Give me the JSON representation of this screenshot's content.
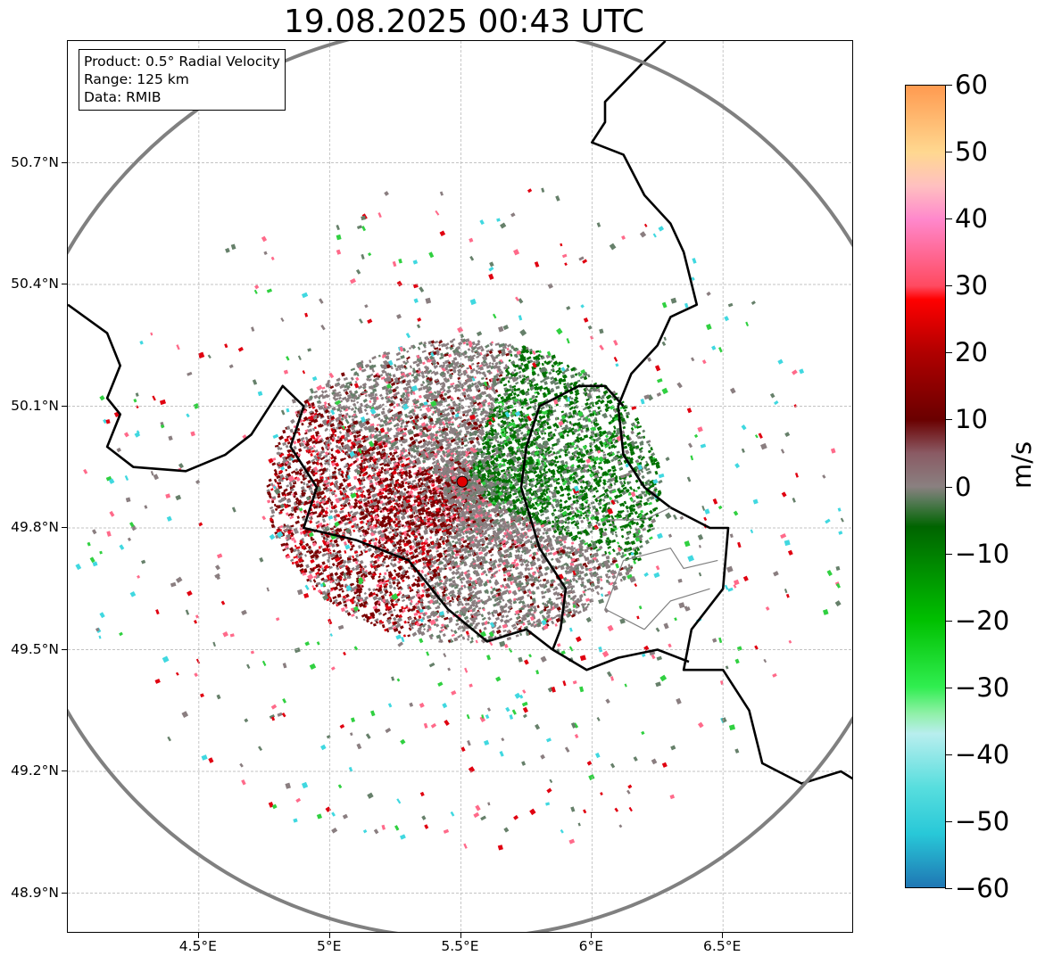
{
  "title": "19.08.2025 00:43 UTC",
  "info": {
    "product": "Product: 0.5° Radial Velocity",
    "range": "Range: 125 km",
    "data": "Data: RMIB"
  },
  "lat_labels": [
    "50.7°N",
    "50.4°N",
    "50.1°N",
    "49.8°N",
    "49.5°N",
    "49.2°N",
    "48.9°N"
  ],
  "lon_labels": [
    "4.5°E",
    "5°E",
    "5.5°E",
    "6°E",
    "6.5°E"
  ],
  "colorbar": {
    "unit": "m/s",
    "min": -60,
    "max": 60,
    "tick_labels": [
      "60",
      "50",
      "40",
      "30",
      "20",
      "10",
      "0",
      "−10",
      "−20",
      "−30",
      "−40",
      "−50",
      "−60"
    ],
    "stops": [
      {
        "v": -60,
        "c": "#1f77b4"
      },
      {
        "v": -52,
        "c": "#28c8d8"
      },
      {
        "v": -45,
        "c": "#58dede"
      },
      {
        "v": -37,
        "c": "#b8eeee"
      },
      {
        "v": -34,
        "c": "#90f0a8"
      },
      {
        "v": -30,
        "c": "#30ee50"
      },
      {
        "v": -20,
        "c": "#00c000"
      },
      {
        "v": -6,
        "c": "#006400"
      },
      {
        "v": -2,
        "c": "#5a7a5a"
      },
      {
        "v": 0,
        "c": "#8a8080"
      },
      {
        "v": 5,
        "c": "#8a5a64"
      },
      {
        "v": 10,
        "c": "#6a0000"
      },
      {
        "v": 20,
        "c": "#b00000"
      },
      {
        "v": 28,
        "c": "#ff0000"
      },
      {
        "v": 30,
        "c": "#ff4a60"
      },
      {
        "v": 40,
        "c": "#ff88cc"
      },
      {
        "v": 45,
        "c": "#ffc0c0"
      },
      {
        "v": 50,
        "c": "#ffd890"
      },
      {
        "v": 60,
        "c": "#ff9a50"
      }
    ]
  },
  "map": {
    "lon_range": [
      4.0,
      7.0
    ],
    "lat_range": [
      48.8,
      51.0
    ],
    "radar_site": {
      "lon": 5.505,
      "lat": 49.914
    },
    "range_ring_color": "#808080",
    "border_color": "#000000",
    "district_color": "#808080",
    "grid_color": "#b0b0b0",
    "echo_colors": {
      "neutral": "#8a7e80",
      "approaching": "#007000",
      "receding": "#7a0000",
      "bright_red": "#e00010",
      "pink": "#ff6a8a",
      "green_light": "#30d040",
      "cyan": "#40d8e0",
      "grey_green": "#66806a"
    }
  }
}
